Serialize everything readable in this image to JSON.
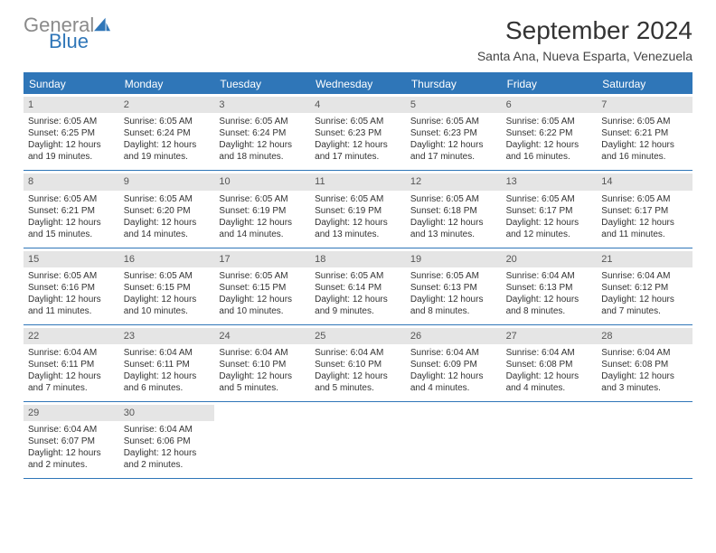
{
  "brand": {
    "general": "General",
    "blue": "Blue"
  },
  "title": "September 2024",
  "subtitle": "Santa Ana, Nueva Esparta, Venezuela",
  "colors": {
    "accent": "#2f76b8",
    "header_gray": "#e5e5e5",
    "text": "#333333",
    "logo_gray": "#8a8a8a"
  },
  "weekdays": [
    "Sunday",
    "Monday",
    "Tuesday",
    "Wednesday",
    "Thursday",
    "Friday",
    "Saturday"
  ],
  "weeks": [
    [
      {
        "num": "1",
        "sunrise": "Sunrise: 6:05 AM",
        "sunset": "Sunset: 6:25 PM",
        "daylight": "Daylight: 12 hours and 19 minutes."
      },
      {
        "num": "2",
        "sunrise": "Sunrise: 6:05 AM",
        "sunset": "Sunset: 6:24 PM",
        "daylight": "Daylight: 12 hours and 19 minutes."
      },
      {
        "num": "3",
        "sunrise": "Sunrise: 6:05 AM",
        "sunset": "Sunset: 6:24 PM",
        "daylight": "Daylight: 12 hours and 18 minutes."
      },
      {
        "num": "4",
        "sunrise": "Sunrise: 6:05 AM",
        "sunset": "Sunset: 6:23 PM",
        "daylight": "Daylight: 12 hours and 17 minutes."
      },
      {
        "num": "5",
        "sunrise": "Sunrise: 6:05 AM",
        "sunset": "Sunset: 6:23 PM",
        "daylight": "Daylight: 12 hours and 17 minutes."
      },
      {
        "num": "6",
        "sunrise": "Sunrise: 6:05 AM",
        "sunset": "Sunset: 6:22 PM",
        "daylight": "Daylight: 12 hours and 16 minutes."
      },
      {
        "num": "7",
        "sunrise": "Sunrise: 6:05 AM",
        "sunset": "Sunset: 6:21 PM",
        "daylight": "Daylight: 12 hours and 16 minutes."
      }
    ],
    [
      {
        "num": "8",
        "sunrise": "Sunrise: 6:05 AM",
        "sunset": "Sunset: 6:21 PM",
        "daylight": "Daylight: 12 hours and 15 minutes."
      },
      {
        "num": "9",
        "sunrise": "Sunrise: 6:05 AM",
        "sunset": "Sunset: 6:20 PM",
        "daylight": "Daylight: 12 hours and 14 minutes."
      },
      {
        "num": "10",
        "sunrise": "Sunrise: 6:05 AM",
        "sunset": "Sunset: 6:19 PM",
        "daylight": "Daylight: 12 hours and 14 minutes."
      },
      {
        "num": "11",
        "sunrise": "Sunrise: 6:05 AM",
        "sunset": "Sunset: 6:19 PM",
        "daylight": "Daylight: 12 hours and 13 minutes."
      },
      {
        "num": "12",
        "sunrise": "Sunrise: 6:05 AM",
        "sunset": "Sunset: 6:18 PM",
        "daylight": "Daylight: 12 hours and 13 minutes."
      },
      {
        "num": "13",
        "sunrise": "Sunrise: 6:05 AM",
        "sunset": "Sunset: 6:17 PM",
        "daylight": "Daylight: 12 hours and 12 minutes."
      },
      {
        "num": "14",
        "sunrise": "Sunrise: 6:05 AM",
        "sunset": "Sunset: 6:17 PM",
        "daylight": "Daylight: 12 hours and 11 minutes."
      }
    ],
    [
      {
        "num": "15",
        "sunrise": "Sunrise: 6:05 AM",
        "sunset": "Sunset: 6:16 PM",
        "daylight": "Daylight: 12 hours and 11 minutes."
      },
      {
        "num": "16",
        "sunrise": "Sunrise: 6:05 AM",
        "sunset": "Sunset: 6:15 PM",
        "daylight": "Daylight: 12 hours and 10 minutes."
      },
      {
        "num": "17",
        "sunrise": "Sunrise: 6:05 AM",
        "sunset": "Sunset: 6:15 PM",
        "daylight": "Daylight: 12 hours and 10 minutes."
      },
      {
        "num": "18",
        "sunrise": "Sunrise: 6:05 AM",
        "sunset": "Sunset: 6:14 PM",
        "daylight": "Daylight: 12 hours and 9 minutes."
      },
      {
        "num": "19",
        "sunrise": "Sunrise: 6:05 AM",
        "sunset": "Sunset: 6:13 PM",
        "daylight": "Daylight: 12 hours and 8 minutes."
      },
      {
        "num": "20",
        "sunrise": "Sunrise: 6:04 AM",
        "sunset": "Sunset: 6:13 PM",
        "daylight": "Daylight: 12 hours and 8 minutes."
      },
      {
        "num": "21",
        "sunrise": "Sunrise: 6:04 AM",
        "sunset": "Sunset: 6:12 PM",
        "daylight": "Daylight: 12 hours and 7 minutes."
      }
    ],
    [
      {
        "num": "22",
        "sunrise": "Sunrise: 6:04 AM",
        "sunset": "Sunset: 6:11 PM",
        "daylight": "Daylight: 12 hours and 7 minutes."
      },
      {
        "num": "23",
        "sunrise": "Sunrise: 6:04 AM",
        "sunset": "Sunset: 6:11 PM",
        "daylight": "Daylight: 12 hours and 6 minutes."
      },
      {
        "num": "24",
        "sunrise": "Sunrise: 6:04 AM",
        "sunset": "Sunset: 6:10 PM",
        "daylight": "Daylight: 12 hours and 5 minutes."
      },
      {
        "num": "25",
        "sunrise": "Sunrise: 6:04 AM",
        "sunset": "Sunset: 6:10 PM",
        "daylight": "Daylight: 12 hours and 5 minutes."
      },
      {
        "num": "26",
        "sunrise": "Sunrise: 6:04 AM",
        "sunset": "Sunset: 6:09 PM",
        "daylight": "Daylight: 12 hours and 4 minutes."
      },
      {
        "num": "27",
        "sunrise": "Sunrise: 6:04 AM",
        "sunset": "Sunset: 6:08 PM",
        "daylight": "Daylight: 12 hours and 4 minutes."
      },
      {
        "num": "28",
        "sunrise": "Sunrise: 6:04 AM",
        "sunset": "Sunset: 6:08 PM",
        "daylight": "Daylight: 12 hours and 3 minutes."
      }
    ],
    [
      {
        "num": "29",
        "sunrise": "Sunrise: 6:04 AM",
        "sunset": "Sunset: 6:07 PM",
        "daylight": "Daylight: 12 hours and 2 minutes."
      },
      {
        "num": "30",
        "sunrise": "Sunrise: 6:04 AM",
        "sunset": "Sunset: 6:06 PM",
        "daylight": "Daylight: 12 hours and 2 minutes."
      },
      null,
      null,
      null,
      null,
      null
    ]
  ]
}
